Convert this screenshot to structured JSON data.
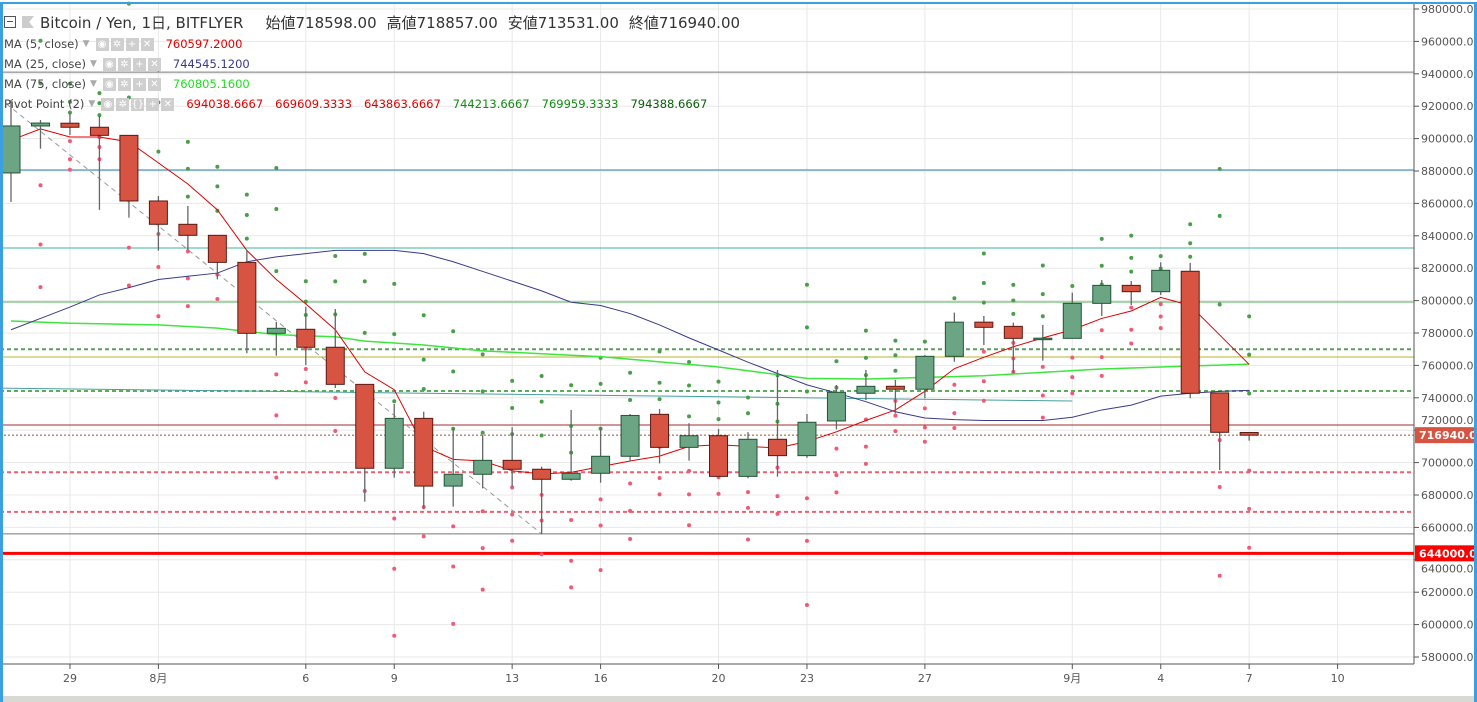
{
  "header": {
    "symbol": "Bitcoin / Yen, 1日, BITFLYER",
    "open_label": "始値",
    "open": "718598.00",
    "high_label": "高値",
    "high": "718857.00",
    "low_label": "安値",
    "low": "713531.00",
    "close_label": "終値",
    "close": "716940.00"
  },
  "indicators": [
    {
      "name": "MA (5, close)",
      "values": [
        "760597.2000"
      ],
      "colors": [
        "#e00000"
      ]
    },
    {
      "name": "MA (25, close)",
      "values": [
        "744545.1200"
      ],
      "colors": [
        "#3a3a8c"
      ]
    },
    {
      "name": "MA (75, close)",
      "values": [
        "760805.1600"
      ],
      "colors": [
        "#22dd22"
      ]
    },
    {
      "name": "Pivot Point (2)",
      "values": [
        "694038.6667",
        "669609.3333",
        "643863.6667",
        "744213.6667",
        "769959.3333",
        "794388.6667"
      ],
      "colors": [
        "#e00000",
        "#e00000",
        "#e00000",
        "#138a13",
        "#138a13",
        "#0b5d0b"
      ]
    }
  ],
  "legend_buttons": [
    "◉",
    "✲",
    "+",
    "✕"
  ],
  "pivot_buttons": [
    "◉",
    "✲",
    "{}",
    "+",
    "✕"
  ],
  "colors": {
    "up": "#6ba583",
    "up_border": "#225437",
    "down": "#d75442",
    "down_border": "#5b1a13",
    "ma5": "#e00000",
    "ma25": "#3a3a8c",
    "ma75": "#3de63d",
    "pivot_r": "#4a9e4a",
    "pivot_s": "#ef5a78"
  },
  "chart_data": {
    "type": "candlestick",
    "title": "Bitcoin / Yen, 1日, BITFLYER",
    "ylim": [
      570000,
      985000
    ],
    "y_ticks": [
      "980000.00",
      "960000.00",
      "940000.00",
      "920000.00",
      "900000.00",
      "880000.00",
      "860000.00",
      "840000.00",
      "820000.00",
      "800000.00",
      "780000.00",
      "760000.00",
      "740000.00",
      "720000.00",
      "700000.00",
      "680000.00",
      "660000.00",
      "640000.00",
      "620000.00",
      "600000.00",
      "580000.00"
    ],
    "x_ticks": [
      {
        "i": 2,
        "label": "29"
      },
      {
        "i": 5,
        "label": "8月"
      },
      {
        "i": 10,
        "label": "6"
      },
      {
        "i": 13,
        "label": "9"
      },
      {
        "i": 17,
        "label": "13"
      },
      {
        "i": 20,
        "label": "16"
      },
      {
        "i": 24,
        "label": "20"
      },
      {
        "i": 27,
        "label": "23"
      },
      {
        "i": 31,
        "label": "27"
      },
      {
        "i": 36,
        "label": "9月"
      },
      {
        "i": 39,
        "label": "4"
      },
      {
        "i": 42,
        "label": "7"
      },
      {
        "i": 45,
        "label": "10"
      }
    ],
    "ohlc": [
      [
        878800,
        923800,
        860900,
        907800
      ],
      [
        907800,
        911500,
        893800,
        909600
      ],
      [
        909500,
        915800,
        902200,
        907000
      ],
      [
        907000,
        914000,
        856000,
        902000
      ],
      [
        902000,
        902000,
        851200,
        861500
      ],
      [
        861500,
        864600,
        830800,
        847100
      ],
      [
        847100,
        858400,
        831200,
        840300
      ],
      [
        840300,
        840300,
        813100,
        823600
      ],
      [
        823600,
        831200,
        767500,
        779800
      ],
      [
        779800,
        786800,
        766000,
        782900
      ],
      [
        782300,
        796200,
        760200,
        771200
      ],
      [
        771200,
        794800,
        746000,
        748300
      ],
      [
        748300,
        748300,
        675900,
        696500
      ],
      [
        696500,
        736200,
        690700,
        727300
      ],
      [
        727300,
        731400,
        671200,
        685500
      ],
      [
        685500,
        721200,
        672800,
        692800
      ],
      [
        692800,
        717000,
        684100,
        701400
      ],
      [
        701400,
        721800,
        685100,
        695900
      ],
      [
        695900,
        697500,
        655900,
        689700
      ],
      [
        689700,
        732500,
        688800,
        693400
      ],
      [
        693400,
        721800,
        687600,
        703900
      ],
      [
        703900,
        730000,
        700600,
        729100
      ],
      [
        729800,
        733100,
        699500,
        709400
      ],
      [
        709400,
        724300,
        701200,
        716600
      ],
      [
        716600,
        720700,
        691500,
        691500
      ],
      [
        691500,
        718800,
        690300,
        714400
      ],
      [
        714400,
        757200,
        691300,
        704300
      ],
      [
        704300,
        730000,
        703000,
        724900
      ],
      [
        725700,
        747900,
        720500,
        743400
      ],
      [
        742800,
        757200,
        738600,
        747100
      ],
      [
        747100,
        751000,
        730400,
        745300
      ],
      [
        745300,
        766400,
        739700,
        765600
      ],
      [
        765600,
        792600,
        762300,
        786700
      ],
      [
        786700,
        790500,
        772600,
        783500
      ],
      [
        784100,
        786400,
        755100,
        776700
      ],
      [
        776700,
        785000,
        762900,
        776800
      ],
      [
        776700,
        804900,
        776700,
        798300
      ],
      [
        798300,
        812700,
        790500,
        809400
      ],
      [
        809400,
        812100,
        797300,
        805500
      ],
      [
        805500,
        823600,
        803500,
        818700
      ],
      [
        818100,
        823400,
        739700,
        742800
      ],
      [
        743000,
        743000,
        695400,
        718700
      ],
      [
        718598,
        718857,
        713531,
        716940
      ]
    ],
    "ma5": [
      899000,
      906000,
      901000,
      901000,
      898000,
      885000,
      872000,
      856000,
      831000,
      813000,
      798000,
      782000,
      756000,
      745000,
      710000,
      702000,
      701000,
      695000,
      693000,
      694000,
      697500,
      701000,
      704000,
      710000,
      711000,
      710000,
      709000,
      713000,
      719000,
      726000,
      732500,
      744000,
      758000,
      765000,
      771500,
      777000,
      782000,
      789000,
      793600,
      802000,
      797000,
      778800,
      760597
    ],
    "ma25": [
      782000,
      789000,
      796000,
      803500,
      808000,
      813000,
      815000,
      817000,
      824000,
      827000,
      829000,
      831000,
      831000,
      831000,
      829000,
      824000,
      818000,
      812000,
      806000,
      799000,
      797000,
      792000,
      785000,
      777000,
      769500,
      762000,
      755000,
      748000,
      743000,
      737600,
      731400,
      727500,
      726500,
      726000,
      726000,
      726000,
      728000,
      732500,
      735500,
      741000,
      742800,
      744000,
      744545
    ],
    "ma75": [
      787400,
      786700,
      786000,
      785700,
      785300,
      785000,
      784000,
      783000,
      781000,
      779000,
      778300,
      777700,
      775000,
      773800,
      772600,
      770800,
      769000,
      768100,
      767200,
      766300,
      765400,
      763800,
      762200,
      760600,
      759000,
      756700,
      754300,
      752000,
      751800,
      751600,
      752100,
      752600,
      753100,
      753600,
      754700,
      755700,
      756800,
      757800,
      758400,
      759000,
      759600,
      760200,
      760805
    ],
    "horizontal_lines": [
      {
        "price": 941000,
        "color": "#777777",
        "style": "solid"
      },
      {
        "price": 880600,
        "color": "#2a7fb8",
        "style": "solid"
      },
      {
        "price": 832500,
        "color": "#3bb39a",
        "style": "solid"
      },
      {
        "price": 799100,
        "color": "#4caf50",
        "style": "solid"
      },
      {
        "price": 769959,
        "color": "#5a9e5a",
        "style": "dashed"
      },
      {
        "price": 765200,
        "color": "#b5b52a",
        "style": "solid"
      },
      {
        "price": 744213,
        "color": "#5aae5a",
        "style": "dashed"
      },
      {
        "price": 723200,
        "color": "#a52a2a",
        "style": "solid"
      },
      {
        "price": 694038,
        "color": "#f06070",
        "style": "dashed"
      },
      {
        "price": 669609,
        "color": "#f06070",
        "style": "dashed"
      },
      {
        "price": 656000,
        "color": "#777777",
        "style": "solid"
      },
      {
        "price": 644000,
        "color": "#ff0000",
        "style": "thick"
      }
    ],
    "trend_lines": [
      {
        "from": [
          -0.4,
          925000
        ],
        "to": [
          18,
          656000
        ],
        "color": "#999999",
        "style": "dashed"
      },
      {
        "from": [
          -0.4,
          746000
        ],
        "to": [
          36,
          738000
        ],
        "color": "#4a9e9e",
        "style": "solid"
      }
    ],
    "current_price": {
      "price": 716940,
      "label": "716940.00",
      "color": "#d75442"
    },
    "level_marker": {
      "price": 644000,
      "label": "644000.00",
      "color": "#ff0000"
    }
  }
}
